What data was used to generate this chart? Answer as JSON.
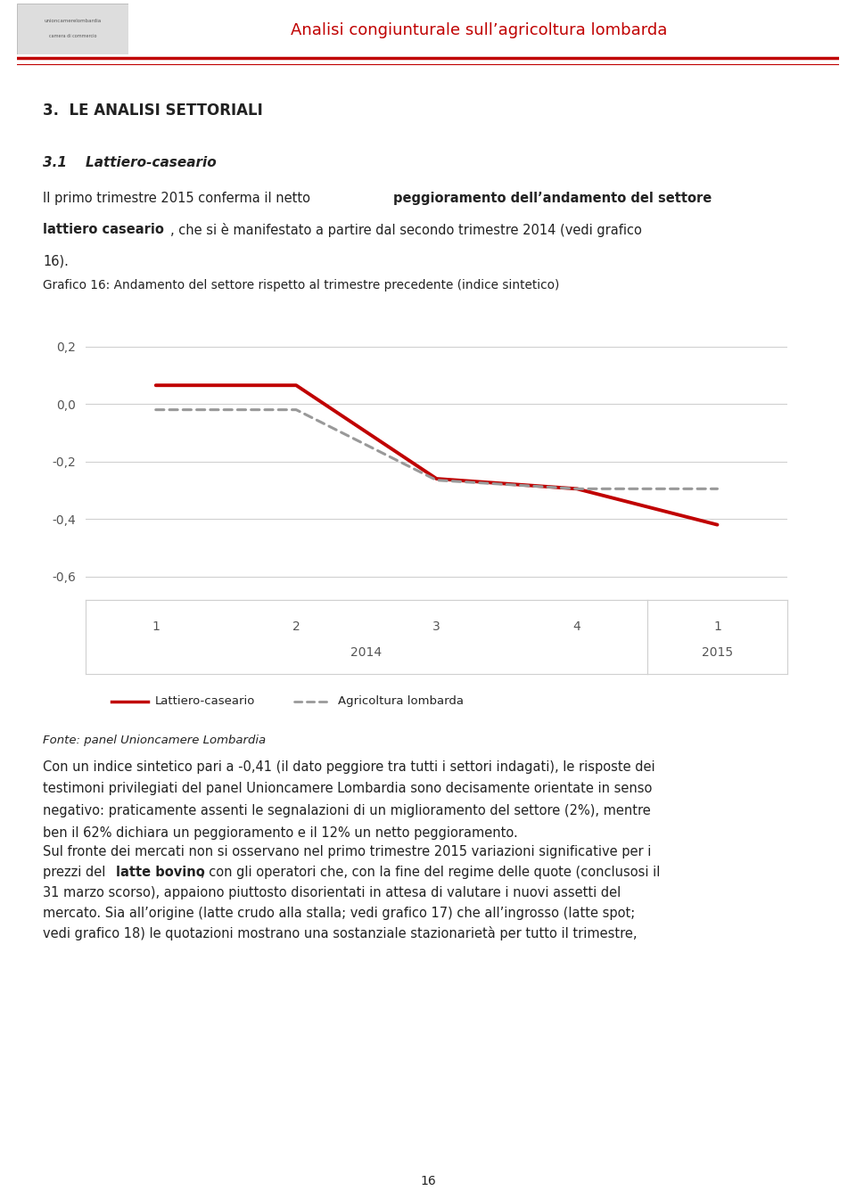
{
  "title_header": "Analisi congiunturale sull’agricoltura lombarda",
  "section_title": "3.  LE ANALISI SETTORIALI",
  "subsection_title": "3.1    Lattiero-caseario",
  "chart_title": "Grafico 16: Andamento del settore rispetto al trimestre precedente (indice sintetico)",
  "fonte": "Fonte: panel Unioncamere Lombardia",
  "x_labels": [
    "1",
    "2",
    "3",
    "4",
    "1"
  ],
  "ylim": [
    -0.68,
    0.3
  ],
  "yticks": [
    0.2,
    0.0,
    -0.2,
    -0.4,
    -0.6
  ],
  "ytick_labels": [
    "0,2",
    "0,0",
    "-0,2",
    "-0,4",
    "-0,6"
  ],
  "lattiero_x": [
    1,
    2,
    3,
    4,
    5
  ],
  "lattiero_y": [
    0.065,
    0.065,
    -0.26,
    -0.295,
    -0.42
  ],
  "agricoltura_x": [
    1,
    2,
    3,
    4,
    5
  ],
  "agricoltura_y": [
    -0.02,
    -0.02,
    -0.265,
    -0.295,
    -0.295
  ],
  "lattiero_color": "#c00000",
  "agricoltura_color": "#999999",
  "lattiero_label": "Lattiero-caseario",
  "agricoltura_label": "Agricoltura lombarda",
  "grid_color": "#d0d0d0",
  "background_color": "#ffffff",
  "header_line_color_thick": "#c00000",
  "header_line_color_thin": "#c00000",
  "header_text_color": "#c00000",
  "text_color": "#222222",
  "page_number": "16",
  "header_red_thick_lw": 2.5,
  "header_red_thin_lw": 0.8
}
